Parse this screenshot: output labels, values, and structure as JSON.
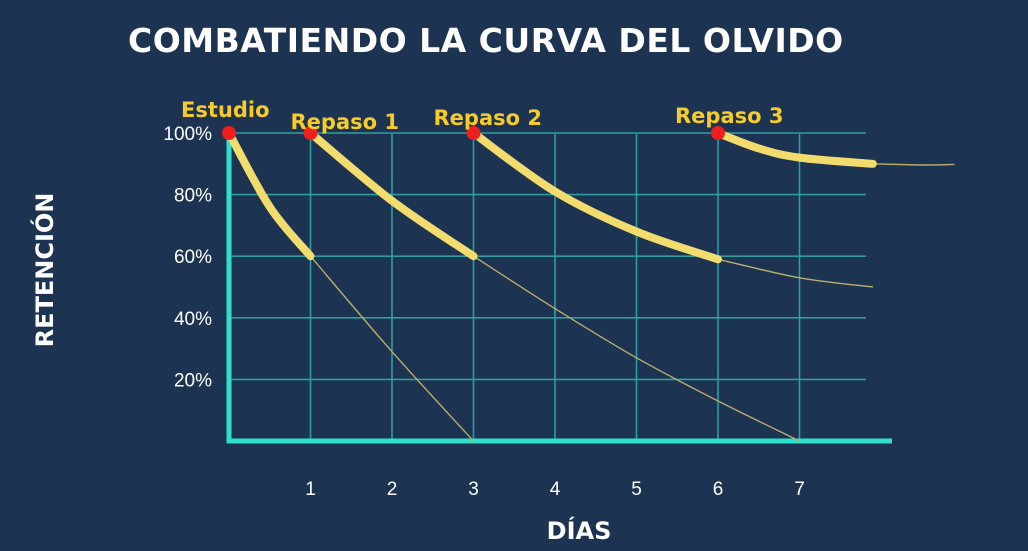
{
  "chart_data": {
    "type": "line",
    "title": "COMBATIENDO LA CURVA DEL OLVIDO",
    "xlabel": "DÍAS",
    "ylabel": "RETENCIÓN",
    "x_ticks": [
      "1",
      "2",
      "3",
      "4",
      "5",
      "6",
      "7"
    ],
    "y_ticks": [
      "20%",
      "40%",
      "60%",
      "80%",
      "100%"
    ],
    "xlim": [
      0,
      8
    ],
    "ylim": [
      0,
      100
    ],
    "grid": true,
    "events": [
      {
        "label": "Estudio",
        "x": 0,
        "y": 100
      },
      {
        "label": "Repaso 1",
        "x": 1,
        "y": 100
      },
      {
        "label": "Repaso 2",
        "x": 3,
        "y": 100
      },
      {
        "label": "Repaso 3",
        "x": 6,
        "y": 100
      }
    ],
    "series": [
      {
        "values": [
          [
            0,
            100
          ],
          [
            0.5,
            76
          ],
          [
            1,
            60
          ]
        ],
        "faint_continuation": [
          [
            1,
            60
          ],
          [
            2,
            29
          ],
          [
            3,
            0
          ]
        ]
      },
      {
        "values": [
          [
            1,
            100
          ],
          [
            2,
            78
          ],
          [
            3,
            60
          ]
        ],
        "faint_continuation": [
          [
            3,
            60
          ],
          [
            4,
            43
          ],
          [
            5,
            27
          ],
          [
            6,
            13
          ],
          [
            7,
            0
          ]
        ]
      },
      {
        "values": [
          [
            3,
            100
          ],
          [
            4,
            81
          ],
          [
            5,
            68
          ],
          [
            6,
            59
          ]
        ],
        "faint_continuation": [
          [
            6,
            59
          ],
          [
            7,
            53
          ],
          [
            7.9,
            50
          ]
        ]
      },
      {
        "values": [
          [
            6,
            100
          ],
          [
            6.5,
            95
          ],
          [
            7,
            92
          ],
          [
            7.9,
            90
          ]
        ],
        "faint_continuation": [
          [
            7.9,
            90
          ],
          [
            8.5,
            89.6
          ],
          [
            8.9,
            89.8
          ]
        ]
      }
    ],
    "colors": {
      "background": "#1c3352",
      "grid": "#2e9ea3",
      "axis": "#2ee0cc",
      "curve": "#f2dc6e",
      "curve_faint": "#b8ae6a",
      "dot": "#f01f1f",
      "event_label": "#f7cc2a"
    }
  }
}
